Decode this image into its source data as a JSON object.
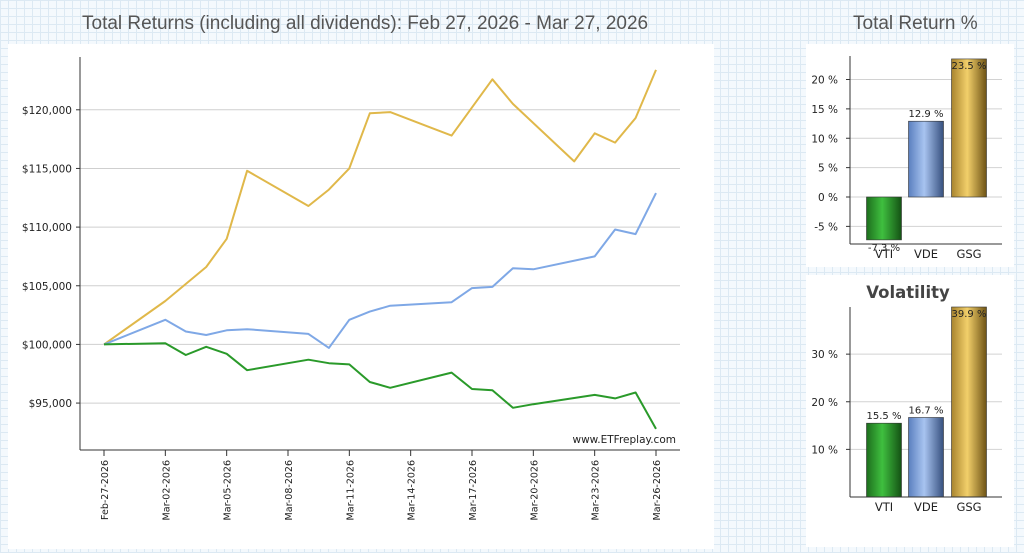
{
  "main_title": "Total Returns (including all dividends): Feb 27, 2026 - Mar 27, 2026",
  "side_title": "Total Return %",
  "volatility_title": "Volatility",
  "watermark": "www.ETFreplay.com",
  "colors": {
    "VTI": "#2a9a2a",
    "VDE": "#7fa8e6",
    "GSG": "#e0b84a"
  },
  "chart_data": [
    {
      "type": "line",
      "title": "Total Returns (including all dividends): Feb 27, 2026 - Mar 27, 2026",
      "ylim": [
        91000,
        124500
      ],
      "yticks": [
        95000,
        100000,
        105000,
        110000,
        115000,
        120000
      ],
      "ytick_labels": [
        "$95,000",
        "$100,000",
        "$105,000",
        "$110,000",
        "$115,000",
        "$120,000"
      ],
      "x_tick_labels": [
        "Feb-27-2026",
        "Mar-02-2026",
        "Mar-05-2026",
        "Mar-08-2026",
        "Mar-11-2026",
        "Mar-14-2026",
        "Mar-17-2026",
        "Mar-20-2026",
        "Mar-23-2026",
        "Mar-26-2026"
      ],
      "x_tick_days": [
        0,
        3,
        6,
        9,
        12,
        15,
        18,
        21,
        24,
        27
      ],
      "xlim": [
        0,
        28
      ],
      "series": [
        {
          "name": "GSG",
          "x": [
            0,
            3,
            5,
            6,
            7,
            10,
            11,
            12,
            13,
            14,
            17,
            18,
            19,
            20,
            23,
            24,
            25,
            26,
            27
          ],
          "values": [
            100000,
            103700,
            106600,
            109000,
            114800,
            111800,
            113200,
            115000,
            119700,
            119800,
            117800,
            120200,
            122600,
            120500,
            115600,
            118000,
            117200,
            119300,
            123400
          ]
        },
        {
          "name": "VDE",
          "x": [
            0,
            3,
            4,
            5,
            6,
            7,
            10,
            11,
            12,
            13,
            14,
            17,
            18,
            19,
            20,
            21,
            24,
            25,
            26,
            27
          ],
          "values": [
            100000,
            102100,
            101100,
            100800,
            101200,
            101300,
            100900,
            99700,
            102100,
            102800,
            103300,
            103600,
            104800,
            104900,
            106500,
            106400,
            107500,
            109800,
            109400,
            112900
          ]
        },
        {
          "name": "VTI",
          "x": [
            0,
            3,
            4,
            5,
            6,
            7,
            10,
            11,
            12,
            13,
            14,
            17,
            18,
            19,
            20,
            21,
            24,
            25,
            26,
            27
          ],
          "values": [
            100000,
            100100,
            99100,
            99800,
            99200,
            97800,
            98700,
            98400,
            98300,
            96800,
            96300,
            97600,
            96200,
            96100,
            94600,
            94900,
            95700,
            95400,
            95900,
            92800
          ]
        }
      ]
    },
    {
      "type": "bar",
      "title": "Total Return %",
      "categories": [
        "VTI",
        "VDE",
        "GSG"
      ],
      "values": [
        -7.3,
        12.9,
        23.5
      ],
      "value_labels": [
        "-7.3 %",
        "12.9 %",
        "23.5 %"
      ],
      "ylim": [
        -8,
        24
      ],
      "yticks": [
        -5,
        0,
        5,
        10,
        15,
        20
      ],
      "ytick_labels": [
        "-5 %",
        "0 %",
        "5 %",
        "10 %",
        "15 %",
        "20 %"
      ]
    },
    {
      "type": "bar",
      "title": "Volatility",
      "categories": [
        "VTI",
        "VDE",
        "GSG"
      ],
      "values": [
        15.5,
        16.7,
        39.9
      ],
      "value_labels": [
        "15.5 %",
        "16.7 %",
        "39.9 %"
      ],
      "ylim": [
        0,
        39.9
      ],
      "yticks": [
        10,
        20,
        30
      ],
      "ytick_labels": [
        "10 %",
        "20 %",
        "30 %"
      ]
    }
  ]
}
